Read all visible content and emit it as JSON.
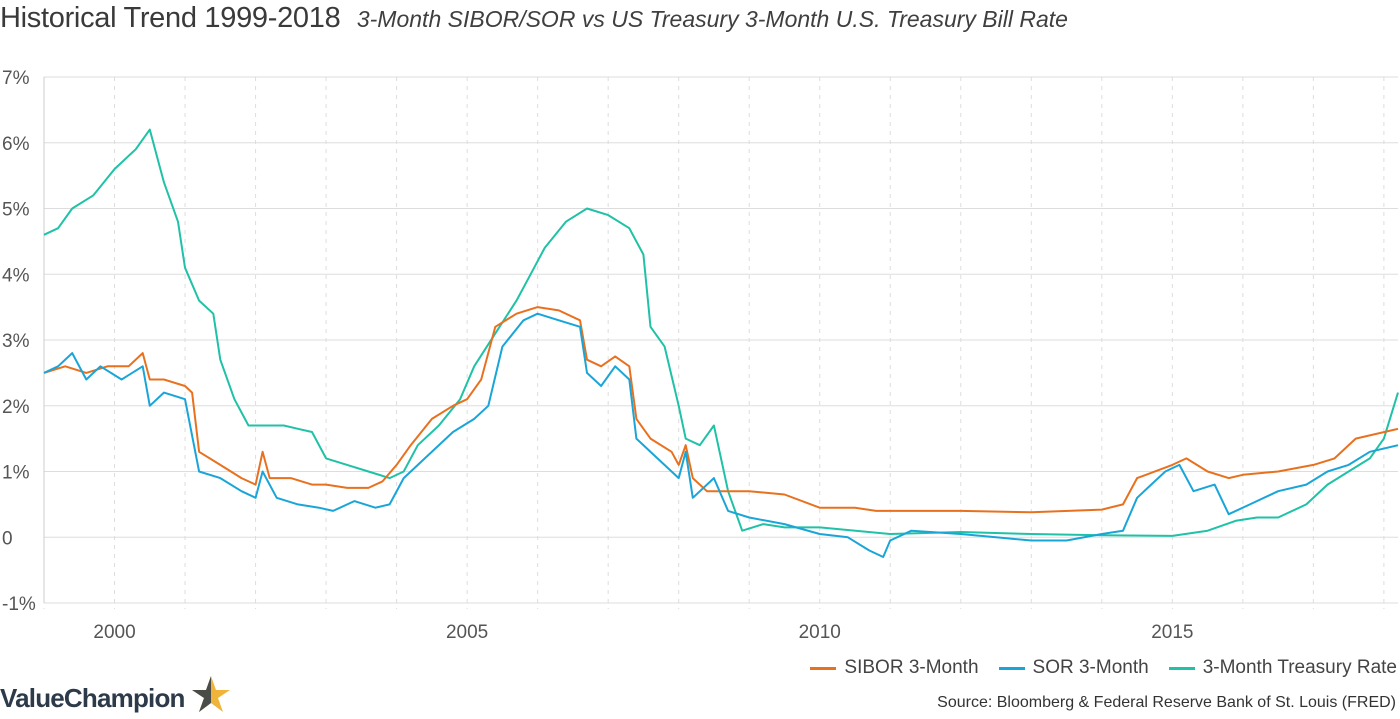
{
  "header": {
    "title": "Historical Trend 1999-2018",
    "subtitle": "3-Month SIBOR/SOR vs US Treasury 3-Month U.S. Treasury Bill Rate"
  },
  "footer": {
    "brand": "ValueChampion",
    "source": "Source: Bloomberg & Federal Reserve Bank of St. Louis (FRED)"
  },
  "colors": {
    "sibor": "#e8711f",
    "sor": "#1aa5d8",
    "treasury": "#1fc2a6",
    "grid": "#dddddd",
    "brand_star": "#f0b43a"
  },
  "chart_data": {
    "type": "line",
    "xlabel": "",
    "ylabel": "",
    "xlim": [
      1999.0,
      2018.2
    ],
    "ylim": [
      -1,
      7
    ],
    "x_ticks": [
      2000,
      2005,
      2010,
      2015
    ],
    "x_tick_labels": [
      "2000",
      "2005",
      "2010",
      "2015"
    ],
    "y_ticks": [
      -1,
      0,
      1,
      2,
      3,
      4,
      5,
      6,
      7
    ],
    "y_tick_labels": [
      "-1%",
      "0",
      "1%",
      "2%",
      "3%",
      "4%",
      "5%",
      "6%",
      "7%"
    ],
    "grid": true,
    "legend_position": "bottom-right",
    "series": [
      {
        "name": "SIBOR 3-Month",
        "color": "#e8711f",
        "points": [
          [
            1999.0,
            2.5
          ],
          [
            1999.3,
            2.6
          ],
          [
            1999.6,
            2.5
          ],
          [
            1999.9,
            2.6
          ],
          [
            2000.2,
            2.6
          ],
          [
            2000.4,
            2.8
          ],
          [
            2000.5,
            2.4
          ],
          [
            2000.7,
            2.4
          ],
          [
            2001.0,
            2.3
          ],
          [
            2001.1,
            2.2
          ],
          [
            2001.2,
            1.3
          ],
          [
            2001.5,
            1.1
          ],
          [
            2001.8,
            0.9
          ],
          [
            2002.0,
            0.8
          ],
          [
            2002.1,
            1.3
          ],
          [
            2002.2,
            0.9
          ],
          [
            2002.5,
            0.9
          ],
          [
            2002.8,
            0.8
          ],
          [
            2003.0,
            0.8
          ],
          [
            2003.3,
            0.75
          ],
          [
            2003.6,
            0.75
          ],
          [
            2003.8,
            0.85
          ],
          [
            2004.0,
            1.1
          ],
          [
            2004.2,
            1.4
          ],
          [
            2004.5,
            1.8
          ],
          [
            2004.8,
            2.0
          ],
          [
            2005.0,
            2.1
          ],
          [
            2005.2,
            2.4
          ],
          [
            2005.4,
            3.2
          ],
          [
            2005.7,
            3.4
          ],
          [
            2006.0,
            3.5
          ],
          [
            2006.3,
            3.45
          ],
          [
            2006.6,
            3.3
          ],
          [
            2006.7,
            2.7
          ],
          [
            2006.9,
            2.6
          ],
          [
            2007.1,
            2.75
          ],
          [
            2007.3,
            2.6
          ],
          [
            2007.4,
            1.8
          ],
          [
            2007.6,
            1.5
          ],
          [
            2007.9,
            1.3
          ],
          [
            2008.0,
            1.1
          ],
          [
            2008.1,
            1.4
          ],
          [
            2008.2,
            0.9
          ],
          [
            2008.4,
            0.7
          ],
          [
            2009.0,
            0.7
          ],
          [
            2009.5,
            0.65
          ],
          [
            2010.0,
            0.45
          ],
          [
            2010.5,
            0.45
          ],
          [
            2010.8,
            0.4
          ],
          [
            2011.0,
            0.4
          ],
          [
            2012.0,
            0.4
          ],
          [
            2013.0,
            0.38
          ],
          [
            2014.0,
            0.42
          ],
          [
            2014.3,
            0.5
          ],
          [
            2014.5,
            0.9
          ],
          [
            2015.0,
            1.1
          ],
          [
            2015.2,
            1.2
          ],
          [
            2015.5,
            1.0
          ],
          [
            2015.8,
            0.9
          ],
          [
            2016.0,
            0.95
          ],
          [
            2016.5,
            1.0
          ],
          [
            2017.0,
            1.1
          ],
          [
            2017.3,
            1.2
          ],
          [
            2017.6,
            1.5
          ],
          [
            2018.2,
            1.65
          ]
        ]
      },
      {
        "name": "SOR 3-Month",
        "color": "#1aa5d8",
        "points": [
          [
            1999.0,
            2.5
          ],
          [
            1999.2,
            2.6
          ],
          [
            1999.4,
            2.8
          ],
          [
            1999.6,
            2.4
          ],
          [
            1999.8,
            2.6
          ],
          [
            2000.1,
            2.4
          ],
          [
            2000.4,
            2.6
          ],
          [
            2000.5,
            2.0
          ],
          [
            2000.7,
            2.2
          ],
          [
            2001.0,
            2.1
          ],
          [
            2001.2,
            1.0
          ],
          [
            2001.5,
            0.9
          ],
          [
            2001.8,
            0.7
          ],
          [
            2002.0,
            0.6
          ],
          [
            2002.1,
            1.0
          ],
          [
            2002.3,
            0.6
          ],
          [
            2002.6,
            0.5
          ],
          [
            2002.9,
            0.45
          ],
          [
            2003.1,
            0.4
          ],
          [
            2003.4,
            0.55
          ],
          [
            2003.7,
            0.45
          ],
          [
            2003.9,
            0.5
          ],
          [
            2004.1,
            0.9
          ],
          [
            2004.4,
            1.2
          ],
          [
            2004.8,
            1.6
          ],
          [
            2005.1,
            1.8
          ],
          [
            2005.3,
            2.0
          ],
          [
            2005.5,
            2.9
          ],
          [
            2005.8,
            3.3
          ],
          [
            2006.0,
            3.4
          ],
          [
            2006.3,
            3.3
          ],
          [
            2006.6,
            3.2
          ],
          [
            2006.7,
            2.5
          ],
          [
            2006.9,
            2.3
          ],
          [
            2007.1,
            2.6
          ],
          [
            2007.3,
            2.4
          ],
          [
            2007.4,
            1.5
          ],
          [
            2007.7,
            1.2
          ],
          [
            2008.0,
            0.9
          ],
          [
            2008.1,
            1.3
          ],
          [
            2008.2,
            0.6
          ],
          [
            2008.5,
            0.9
          ],
          [
            2008.7,
            0.4
          ],
          [
            2009.0,
            0.3
          ],
          [
            2009.5,
            0.2
          ],
          [
            2010.0,
            0.05
          ],
          [
            2010.4,
            0.0
          ],
          [
            2010.7,
            -0.2
          ],
          [
            2010.9,
            -0.3
          ],
          [
            2011.0,
            -0.05
          ],
          [
            2011.3,
            0.1
          ],
          [
            2012.0,
            0.05
          ],
          [
            2012.5,
            0.0
          ],
          [
            2013.0,
            -0.05
          ],
          [
            2013.5,
            -0.05
          ],
          [
            2014.0,
            0.05
          ],
          [
            2014.3,
            0.1
          ],
          [
            2014.5,
            0.6
          ],
          [
            2014.9,
            1.0
          ],
          [
            2015.1,
            1.1
          ],
          [
            2015.3,
            0.7
          ],
          [
            2015.6,
            0.8
          ],
          [
            2015.8,
            0.35
          ],
          [
            2016.1,
            0.5
          ],
          [
            2016.5,
            0.7
          ],
          [
            2016.9,
            0.8
          ],
          [
            2017.2,
            1.0
          ],
          [
            2017.5,
            1.1
          ],
          [
            2017.8,
            1.3
          ],
          [
            2018.2,
            1.4
          ]
        ]
      },
      {
        "name": "3-Month Treasury Rate",
        "color": "#1fc2a6",
        "points": [
          [
            1999.0,
            4.6
          ],
          [
            1999.2,
            4.7
          ],
          [
            1999.4,
            5.0
          ],
          [
            1999.7,
            5.2
          ],
          [
            2000.0,
            5.6
          ],
          [
            2000.3,
            5.9
          ],
          [
            2000.5,
            6.2
          ],
          [
            2000.7,
            5.4
          ],
          [
            2000.9,
            4.8
          ],
          [
            2001.0,
            4.1
          ],
          [
            2001.2,
            3.6
          ],
          [
            2001.4,
            3.4
          ],
          [
            2001.5,
            2.7
          ],
          [
            2001.7,
            2.1
          ],
          [
            2001.9,
            1.7
          ],
          [
            2002.1,
            1.7
          ],
          [
            2002.4,
            1.7
          ],
          [
            2002.6,
            1.65
          ],
          [
            2002.8,
            1.6
          ],
          [
            2003.0,
            1.2
          ],
          [
            2003.3,
            1.1
          ],
          [
            2003.6,
            1.0
          ],
          [
            2003.9,
            0.9
          ],
          [
            2004.1,
            1.0
          ],
          [
            2004.3,
            1.4
          ],
          [
            2004.6,
            1.7
          ],
          [
            2004.9,
            2.1
          ],
          [
            2005.1,
            2.6
          ],
          [
            2005.4,
            3.1
          ],
          [
            2005.7,
            3.6
          ],
          [
            2005.9,
            4.0
          ],
          [
            2006.1,
            4.4
          ],
          [
            2006.4,
            4.8
          ],
          [
            2006.7,
            5.0
          ],
          [
            2007.0,
            4.9
          ],
          [
            2007.3,
            4.7
          ],
          [
            2007.5,
            4.3
          ],
          [
            2007.6,
            3.2
          ],
          [
            2007.8,
            2.9
          ],
          [
            2008.0,
            2.0
          ],
          [
            2008.1,
            1.5
          ],
          [
            2008.3,
            1.4
          ],
          [
            2008.5,
            1.7
          ],
          [
            2008.7,
            0.7
          ],
          [
            2008.9,
            0.1
          ],
          [
            2009.2,
            0.2
          ],
          [
            2009.5,
            0.15
          ],
          [
            2010.0,
            0.15
          ],
          [
            2011.0,
            0.05
          ],
          [
            2012.0,
            0.08
          ],
          [
            2013.0,
            0.05
          ],
          [
            2014.0,
            0.03
          ],
          [
            2015.0,
            0.02
          ],
          [
            2015.5,
            0.1
          ],
          [
            2015.9,
            0.25
          ],
          [
            2016.2,
            0.3
          ],
          [
            2016.5,
            0.3
          ],
          [
            2016.9,
            0.5
          ],
          [
            2017.2,
            0.8
          ],
          [
            2017.5,
            1.0
          ],
          [
            2017.8,
            1.2
          ],
          [
            2018.0,
            1.5
          ],
          [
            2018.2,
            2.2
          ]
        ]
      }
    ]
  }
}
